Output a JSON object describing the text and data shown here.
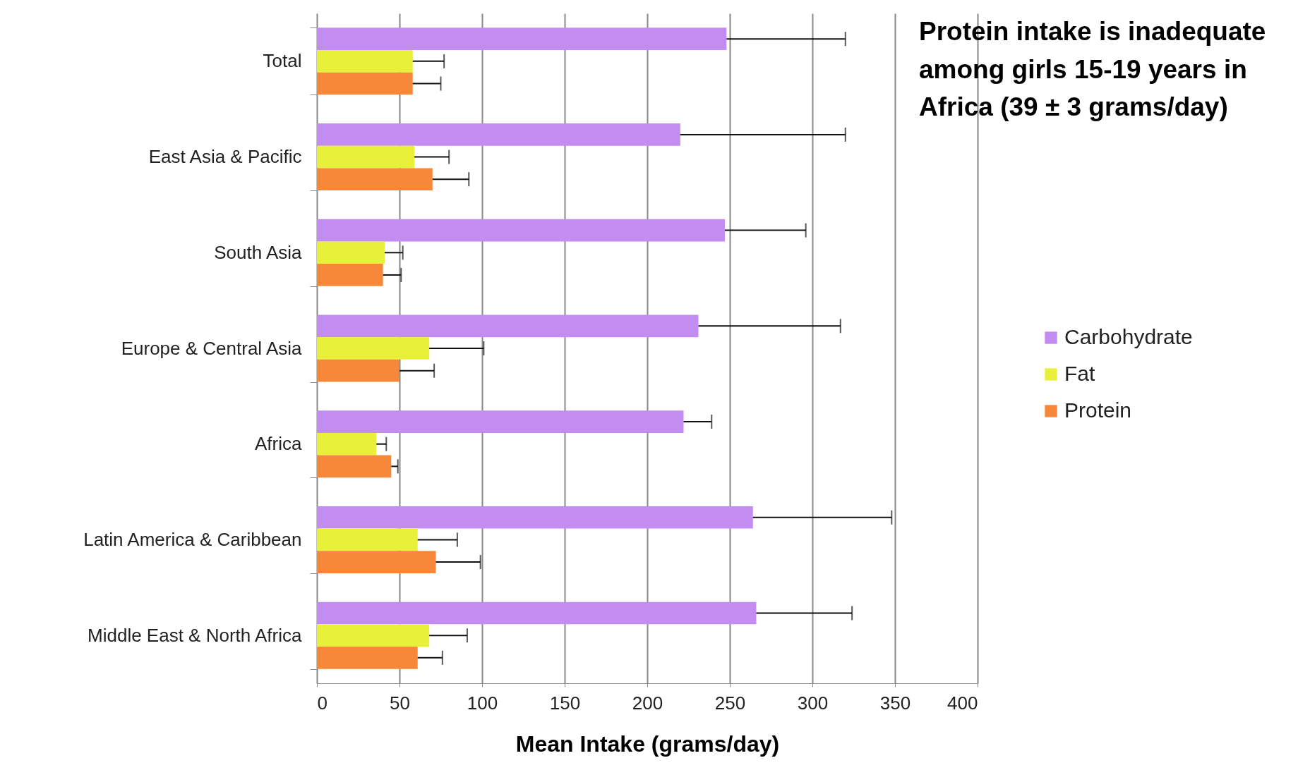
{
  "chart_data": {
    "type": "bar",
    "orientation": "horizontal",
    "categories": [
      "Total",
      "East Asia & Pacific",
      "South Asia",
      "Europe & Central Asia",
      "Africa",
      "Latin America & Caribbean",
      "Middle East & North Africa"
    ],
    "series": [
      {
        "name": "Carbohydrate",
        "color": "#c38cf0",
        "values": [
          248,
          220,
          247,
          231,
          222,
          264,
          266
        ],
        "errors": [
          [
            248,
            320
          ],
          [
            220,
            320
          ],
          [
            247,
            296
          ],
          [
            231,
            317
          ],
          [
            222,
            239
          ],
          [
            264,
            348
          ],
          [
            266,
            324
          ]
        ]
      },
      {
        "name": "Fat",
        "color": "#e8f03a",
        "values": [
          58,
          59,
          41,
          68,
          36,
          61,
          68
        ],
        "errors": [
          [
            58,
            77
          ],
          [
            59,
            80
          ],
          [
            41,
            52
          ],
          [
            68,
            101
          ],
          [
            36,
            42
          ],
          [
            61,
            85
          ],
          [
            68,
            91
          ]
        ]
      },
      {
        "name": "Protein",
        "color": "#f7883a",
        "values": [
          58,
          70,
          40,
          50,
          45,
          72,
          61
        ],
        "errors": [
          [
            58,
            75
          ],
          [
            70,
            92
          ],
          [
            40,
            51
          ],
          [
            50,
            71
          ],
          [
            45,
            49
          ],
          [
            72,
            99
          ],
          [
            61,
            76
          ]
        ]
      }
    ],
    "xlabel": "Mean Intake (grams/day)",
    "xlim": [
      0,
      400
    ],
    "xticks": [
      0,
      50,
      100,
      150,
      200,
      250,
      300,
      350,
      400
    ],
    "grid": "x",
    "legend": "right",
    "annotations": [
      "Protein intake is inadequate among girls 15-19 years in Africa (39 ± 3 grams/day)"
    ]
  }
}
